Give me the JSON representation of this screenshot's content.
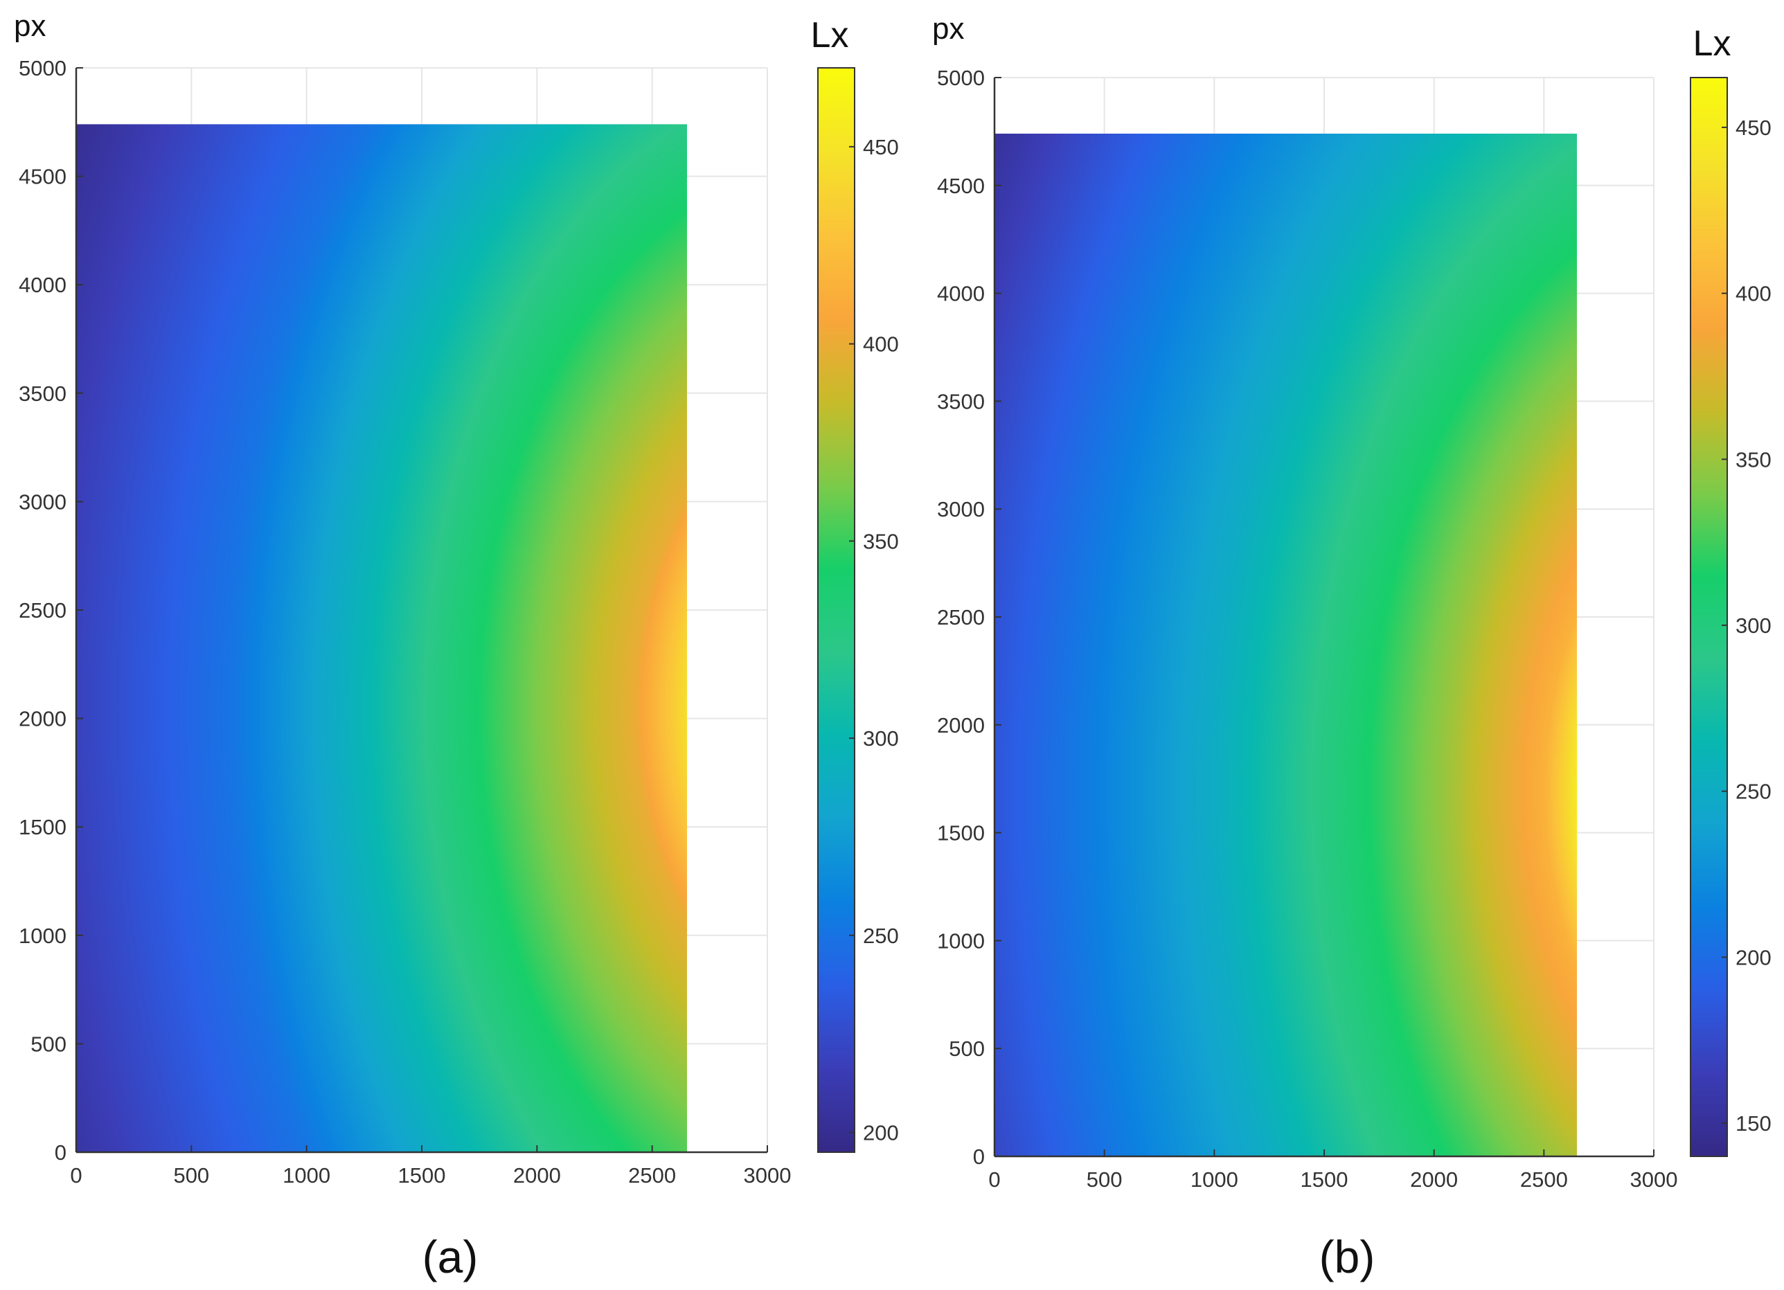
{
  "chart_data": [
    {
      "type": "heatmap",
      "panel_label": "(a)",
      "ylabel": "px",
      "colorbar_label": "Lx",
      "xlim": [
        0,
        3000
      ],
      "ylim": [
        0,
        5000
      ],
      "x_ticks": [
        "0",
        "500",
        "1000",
        "1500",
        "2000",
        "2500",
        "3000"
      ],
      "y_ticks": [
        "0",
        "500",
        "1000",
        "1500",
        "2000",
        "2500",
        "3000",
        "3500",
        "4000",
        "4500",
        "5000"
      ],
      "grid": true,
      "data_extent": {
        "x": [
          0,
          2650
        ],
        "y": [
          0,
          4740
        ]
      },
      "colorbar_range": [
        195,
        470
      ],
      "colorbar_ticks": [
        "200",
        "250",
        "300",
        "350",
        "400",
        "450"
      ],
      "colormap": "parula",
      "field": {
        "peak_center": {
          "x": 3320,
          "y": 2050
        },
        "contours": [
          {
            "value": 250,
            "radius_x": 2650
          },
          {
            "value": 300,
            "radius_x": 2050
          },
          {
            "value": 350,
            "radius_x": 1500
          },
          {
            "value": 400,
            "radius_x": 900
          },
          {
            "value": 450,
            "radius_x": 650
          }
        ],
        "min_at": {
          "x": 0,
          "y": 4740,
          "value": 200
        },
        "max_at": {
          "x": 2650,
          "y": 2050,
          "value": 465
        }
      }
    },
    {
      "type": "heatmap",
      "panel_label": "(b)",
      "ylabel": "px",
      "colorbar_label": "Lx",
      "xlim": [
        0,
        3000
      ],
      "ylim": [
        0,
        5000
      ],
      "x_ticks": [
        "0",
        "500",
        "1000",
        "1500",
        "2000",
        "2500",
        "3000"
      ],
      "y_ticks": [
        "0",
        "500",
        "1000",
        "1500",
        "2000",
        "2500",
        "3000",
        "3500",
        "4000",
        "4500",
        "5000"
      ],
      "grid": true,
      "data_extent": {
        "x": [
          0,
          2650
        ],
        "y": [
          0,
          4740
        ]
      },
      "colorbar_range": [
        140,
        465
      ],
      "colorbar_ticks": [
        "150",
        "200",
        "250",
        "300",
        "350",
        "400",
        "450"
      ],
      "colormap": "parula",
      "field": {
        "peak_center": {
          "x": 3450,
          "y": 1700
        },
        "contours": [
          {
            "value": 200,
            "radius_x": 3200
          },
          {
            "value": 250,
            "radius_x": 2450
          },
          {
            "value": 300,
            "radius_x": 1900
          },
          {
            "value": 350,
            "radius_x": 1400
          },
          {
            "value": 400,
            "radius_x": 950
          },
          {
            "value": 450,
            "radius_x": 790
          }
        ],
        "min_at": {
          "x": 0,
          "y": 4740,
          "value": 150
        },
        "max_at": {
          "x": 2650,
          "y": 1700,
          "value": 460
        }
      }
    }
  ],
  "colors": {
    "parula_stops": [
      "#352a87",
      "#3b3eb8",
      "#2a5fe6",
      "#0b82e0",
      "#13a4d0",
      "#08b8b0",
      "#2cc78a",
      "#17cf6a",
      "#7ccb4a",
      "#c7bc2a",
      "#f9a63a",
      "#fbc33a",
      "#f5e32a",
      "#f9fb0e"
    ],
    "grid": "#e6e6e6",
    "axis": "#333333",
    "label": "#111111"
  }
}
